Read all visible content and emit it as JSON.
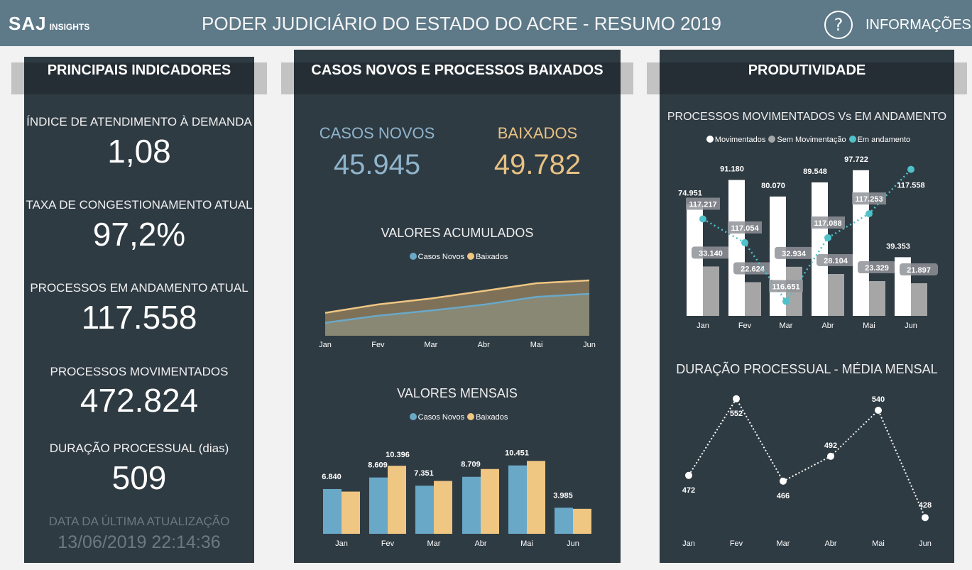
{
  "header": {
    "logo": "SAJ",
    "logo_sub": "INSIGHTS",
    "title": "PODER JUDICIÁRIO DO ESTADO DO ACRE - RESUMO 2019",
    "help_icon": "?",
    "info_label": "INFORMAÇÕES",
    "bg": "#5e7a89"
  },
  "left": {
    "title": "PRINCIPAIS INDICADORES",
    "kpis": [
      {
        "label": "ÍNDICE DE ATENDIMENTO À DEMANDA",
        "value": "1,08"
      },
      {
        "label": "TAXA DE CONGESTIONAMENTO ATUAL",
        "value": "97,2%"
      },
      {
        "label": "PROCESSOS EM ANDAMENTO ATUAL",
        "value": "117.558"
      },
      {
        "label": "PROCESSOS MOVIMENTADOS",
        "value": "472.824"
      },
      {
        "label": "DURAÇÃO PROCESSUAL (dias)",
        "value": "509"
      }
    ],
    "update_label": "DATA DA ÚLTIMA ATUALIZAÇÃO",
    "update_value": "13/06/2019 22:14:36"
  },
  "middle": {
    "title": "CASOS NOVOS E PROCESSOS BAIXADOS",
    "casos_label": "CASOS NOVOS",
    "casos_value": "45.945",
    "baixados_label": "BAIXADOS",
    "baixados_value": "49.782",
    "acc_title": "VALORES ACUMULADOS",
    "mon_title": "VALORES MENSAIS",
    "legend": [
      "Casos Novos",
      "Baixados"
    ]
  },
  "right": {
    "title": "PRODUTIVIDADE",
    "chart1_title": "PROCESSOS MOVIMENTADOS Vs EM ANDAMENTO",
    "legend": [
      "Movimentados",
      "Sem Movimentação",
      "Em andamento"
    ],
    "chart2_title": "DURAÇÃO PROCESSUAL - MÉDIA MENSAL"
  },
  "colors": {
    "casos": "#6aa8c8",
    "baixados": "#efc682",
    "mov": "#ffffff",
    "sem": "#a6a6a6",
    "and": "#4fc1c9"
  },
  "chart_data": [
    {
      "type": "area",
      "title": "VALORES ACUMULADOS",
      "categories": [
        "Jan",
        "Fev",
        "Mar",
        "Abr",
        "Mai",
        "Jun"
      ],
      "series": [
        {
          "name": "Casos Novos",
          "values": [
            55,
            85,
            107,
            132,
            165,
            178
          ]
        },
        {
          "name": "Baixados",
          "values": [
            97,
            133,
            158,
            190,
            223,
            235
          ]
        }
      ],
      "ylim": [
        0,
        250
      ],
      "note_units": "relative (unlabeled)"
    },
    {
      "type": "bar",
      "title": "VALORES MENSAIS",
      "categories": [
        "Jan",
        "Fev",
        "Mar",
        "Abr",
        "Mai",
        "Jun"
      ],
      "series": [
        {
          "name": "Casos Novos",
          "values": [
            6840,
            8609,
            7351,
            8709,
            10451,
            3985
          ],
          "labels": [
            "6.840",
            "8.609",
            "7.351",
            "8.709",
            "10.451",
            "3.985"
          ]
        },
        {
          "name": "Baixados",
          "values": [
            6450,
            10396,
            8080,
            9900,
            11140,
            3816
          ],
          "labels": [
            "",
            "10.396",
            "",
            "",
            "",
            ""
          ]
        }
      ],
      "ylim": [
        0,
        11500
      ]
    },
    {
      "type": "bar",
      "title": "PROCESSOS MOVIMENTADOS Vs EM ANDAMENTO",
      "categories": [
        "Jan",
        "Fev",
        "Mar",
        "Abr",
        "Mai",
        "Jun"
      ],
      "series": [
        {
          "name": "Movimentados",
          "values": [
            74951,
            91180,
            80070,
            89548,
            97722,
            39353
          ],
          "labels": [
            "74.951",
            "91.180",
            "80.070",
            "89.548",
            "97.722",
            "39.353"
          ]
        },
        {
          "name": "Sem Movimentação",
          "values": [
            33140,
            22624,
            32934,
            28104,
            23329,
            21897
          ],
          "labels": [
            "33.140",
            "22.624",
            "32.934",
            "28.104",
            "23.329",
            "21.897"
          ]
        },
        {
          "name": "Em andamento",
          "type": "line",
          "values": [
            117217,
            117054,
            116651,
            117088,
            117253,
            117558
          ],
          "labels": [
            "117.217",
            "117.054",
            "116.651",
            "117.088",
            "117.253",
            "117.558"
          ]
        }
      ],
      "ylim": [
        0,
        100000
      ],
      "y2lim": [
        116600,
        117600
      ]
    },
    {
      "type": "line",
      "title": "DURAÇÃO PROCESSUAL - MÉDIA MENSAL",
      "categories": [
        "Jan",
        "Fev",
        "Mar",
        "Abr",
        "Mai",
        "Jun"
      ],
      "values": [
        472,
        552,
        466,
        492,
        540,
        428
      ],
      "labels": [
        "472",
        "552",
        "466",
        "492",
        "540",
        "428"
      ],
      "ylim": [
        420,
        560
      ]
    }
  ]
}
